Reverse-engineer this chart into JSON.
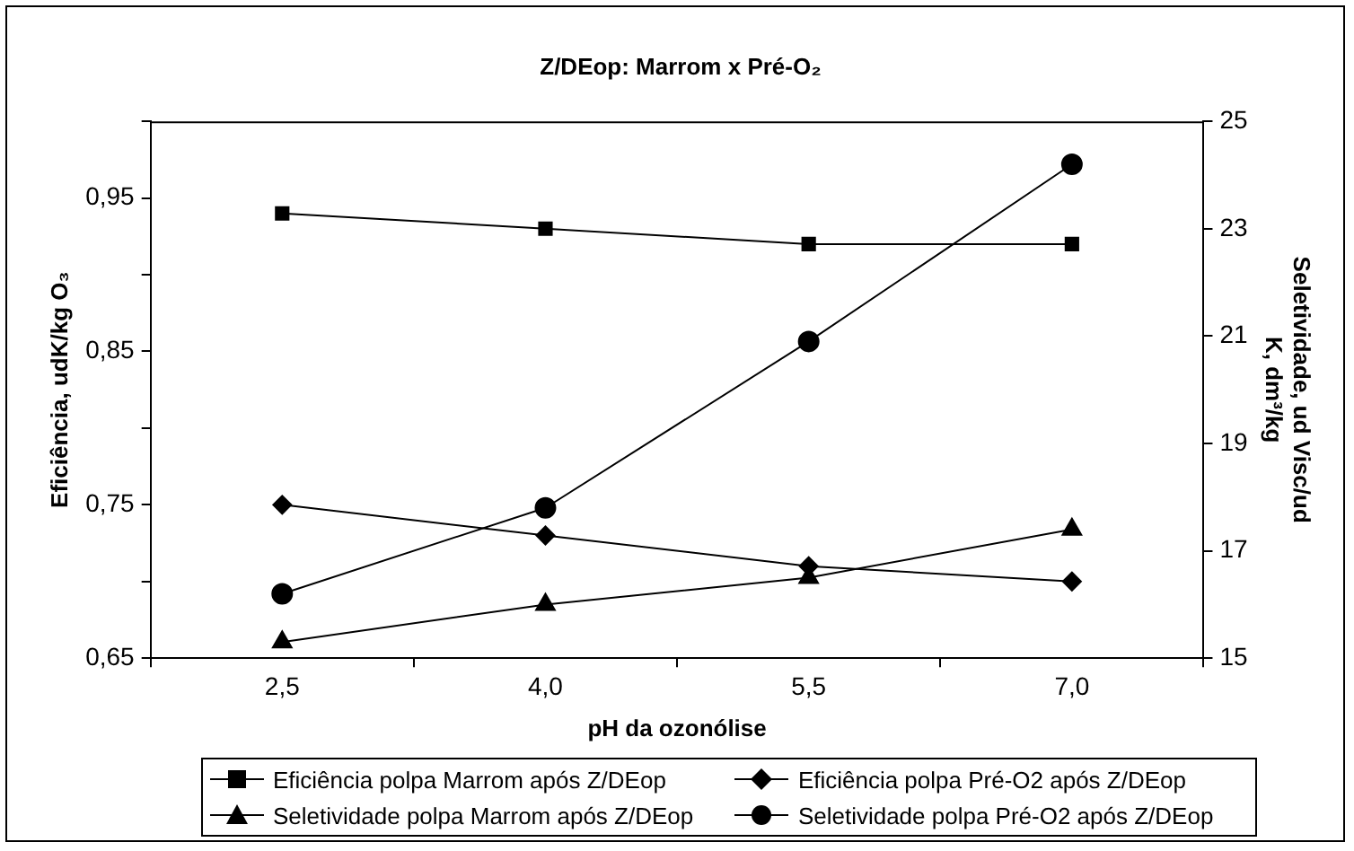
{
  "chart_data": {
    "type": "line",
    "title": "Z/DEop: Marrom x Pré-O₂",
    "xlabel": "pH da ozonólise",
    "ylabel": "Eficiência, udK/kg O₃",
    "y2label": "Seletividade, ud Visc/ud K, dm³/kg",
    "categories": [
      "2,5",
      "4,0",
      "5,5",
      "7,0"
    ],
    "series": [
      {
        "name": "Eficiência polpa Marrom após Z/DEop",
        "color": "#000000",
        "marker": "square",
        "values": [
          0.94,
          0.93,
          0.92,
          0.92
        ]
      },
      {
        "name": "Eficiência polpa Pré-O2 após Z/DEop",
        "color": "#000000",
        "marker": "diamond",
        "values": [
          0.75,
          0.73,
          0.71,
          0.7
        ]
      },
      {
        "name": "Seletividade polpa Marrom após Z/DEop",
        "color": "#000000",
        "marker": "triangle",
        "axis": "y2",
        "values": [
          15.3,
          16.0,
          16.5,
          17.4
        ]
      },
      {
        "name": "Seletividade polpa Pré-O2 após Z/DEop",
        "color": "#000000",
        "marker": "circle",
        "axis": "y2",
        "values": [
          16.2,
          17.8,
          20.9,
          24.2
        ]
      }
    ],
    "ylim": [
      0.65,
      1.0
    ],
    "yticks": [
      {
        "value": 0.65,
        "label": "0,65"
      },
      {
        "value": 0.7,
        "label": null
      },
      {
        "value": 0.75,
        "label": "0,75"
      },
      {
        "value": 0.8,
        "label": null
      },
      {
        "value": 0.85,
        "label": "0,85"
      },
      {
        "value": 0.9,
        "label": null
      },
      {
        "value": 0.95,
        "label": "0,95"
      },
      {
        "value": 1.0,
        "label": null
      }
    ],
    "y2lim": [
      15,
      25
    ],
    "y2ticks": [
      15,
      17,
      19,
      21,
      23,
      25
    ],
    "grid": false,
    "legend": "bottom"
  }
}
